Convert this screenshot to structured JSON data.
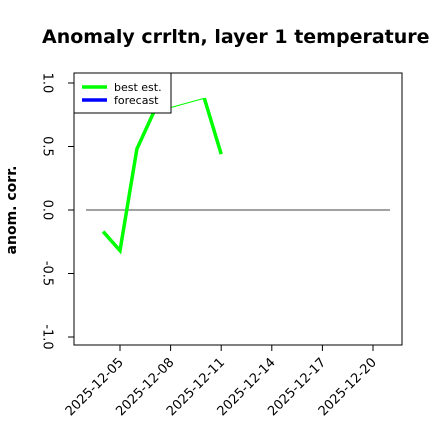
{
  "chart_data": {
    "type": "line",
    "title": "Anomaly crrltn, layer 1 temperature",
    "ylabel": "anom. corr.",
    "xlabel": "",
    "ylim": [
      -1.0,
      1.0
    ],
    "yticks": [
      "-1.0",
      "-0.5",
      "0.0",
      "0.5",
      "1.0"
    ],
    "xticks": [
      "2025-12-05",
      "2025-12-08",
      "2025-12-11",
      "2025-12-14",
      "2025-12-17",
      "2025-12-20"
    ],
    "highlighted_xtick": "2025-12-11",
    "highlight_color": "#228b22",
    "reference_line_y": 0.0,
    "legend": {
      "placement": "top-left"
    },
    "series": [
      {
        "name": "best est.",
        "color": "#00ff00",
        "points": [
          {
            "x": "2025-12-04",
            "y": -0.17
          },
          {
            "x": "2025-12-05",
            "y": -0.32
          },
          {
            "x": "2025-12-06",
            "y": 0.48
          },
          {
            "x": "2025-12-07",
            "y": 0.77
          },
          {
            "x": "2025-12-10",
            "y": 0.88
          },
          {
            "x": "2025-12-11",
            "y": 0.44
          }
        ]
      },
      {
        "name": "forecast",
        "color": "#0000ff",
        "points": []
      }
    ]
  }
}
